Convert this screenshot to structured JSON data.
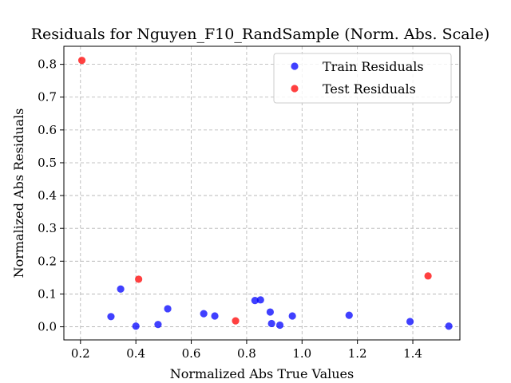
{
  "chart_data": {
    "type": "scatter",
    "title": "Residuals for Nguyen_F10_RandSample (Norm. Abs. Scale)",
    "xlabel": "Normalized Abs True Values",
    "ylabel": "Normalized Abs Residuals",
    "xlim": [
      0.14,
      1.57
    ],
    "ylim": [
      -0.04,
      0.855
    ],
    "xticks": [
      "0.2",
      "0.4",
      "0.6",
      "0.8",
      "1.0",
      "1.2",
      "1.4"
    ],
    "yticks": [
      "0.0",
      "0.1",
      "0.2",
      "0.3",
      "0.4",
      "0.5",
      "0.6",
      "0.7",
      "0.8"
    ],
    "grid": true,
    "legend_position": "upper-right",
    "series": [
      {
        "name": "Train Residuals",
        "color": "#0000ff",
        "points": [
          [
            0.31,
            0.031
          ],
          [
            0.345,
            0.115
          ],
          [
            0.4,
            0.002
          ],
          [
            0.48,
            0.007
          ],
          [
            0.515,
            0.055
          ],
          [
            0.645,
            0.04
          ],
          [
            0.685,
            0.033
          ],
          [
            0.83,
            0.08
          ],
          [
            0.85,
            0.082
          ],
          [
            0.885,
            0.045
          ],
          [
            0.89,
            0.01
          ],
          [
            0.92,
            0.005
          ],
          [
            0.965,
            0.033
          ],
          [
            1.17,
            0.035
          ],
          [
            1.39,
            0.016
          ],
          [
            1.53,
            0.002
          ]
        ]
      },
      {
        "name": "Test Residuals",
        "color": "#ff0000",
        "points": [
          [
            0.205,
            0.812
          ],
          [
            0.41,
            0.145
          ],
          [
            0.76,
            0.018
          ],
          [
            1.455,
            0.155
          ]
        ]
      }
    ]
  }
}
